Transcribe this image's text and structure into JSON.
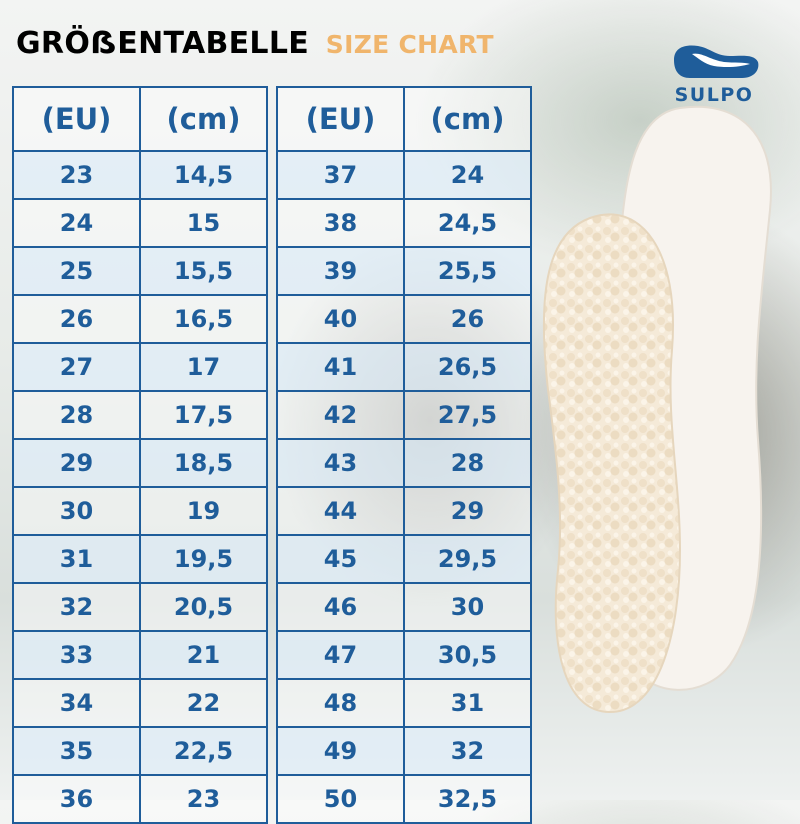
{
  "title": {
    "de": "GRÖẞENTABELLE",
    "en": "SIZE CHART"
  },
  "brand": "SULPO",
  "colors": {
    "primary": "#1f5d9a",
    "accent": "#f0b56c"
  },
  "table": {
    "headers": {
      "eu": "(EU)",
      "cm": "(cm)"
    },
    "left": [
      {
        "eu": "23",
        "cm": "14,5"
      },
      {
        "eu": "24",
        "cm": "15"
      },
      {
        "eu": "25",
        "cm": "15,5"
      },
      {
        "eu": "26",
        "cm": "16,5"
      },
      {
        "eu": "27",
        "cm": "17"
      },
      {
        "eu": "28",
        "cm": "17,5"
      },
      {
        "eu": "29",
        "cm": "18,5"
      },
      {
        "eu": "30",
        "cm": "19"
      },
      {
        "eu": "31",
        "cm": "19,5"
      },
      {
        "eu": "32",
        "cm": "20,5"
      },
      {
        "eu": "33",
        "cm": "21"
      },
      {
        "eu": "34",
        "cm": "22"
      },
      {
        "eu": "35",
        "cm": "22,5"
      },
      {
        "eu": "36",
        "cm": "23"
      }
    ],
    "right": [
      {
        "eu": "37",
        "cm": "24"
      },
      {
        "eu": "38",
        "cm": "24,5"
      },
      {
        "eu": "39",
        "cm": "25,5"
      },
      {
        "eu": "40",
        "cm": "26"
      },
      {
        "eu": "41",
        "cm": "26,5"
      },
      {
        "eu": "42",
        "cm": "27,5"
      },
      {
        "eu": "43",
        "cm": "28"
      },
      {
        "eu": "44",
        "cm": "29"
      },
      {
        "eu": "45",
        "cm": "29,5"
      },
      {
        "eu": "46",
        "cm": "30"
      },
      {
        "eu": "47",
        "cm": "30,5"
      },
      {
        "eu": "48",
        "cm": "31"
      },
      {
        "eu": "49",
        "cm": "32"
      },
      {
        "eu": "50",
        "cm": "32,5"
      }
    ]
  }
}
